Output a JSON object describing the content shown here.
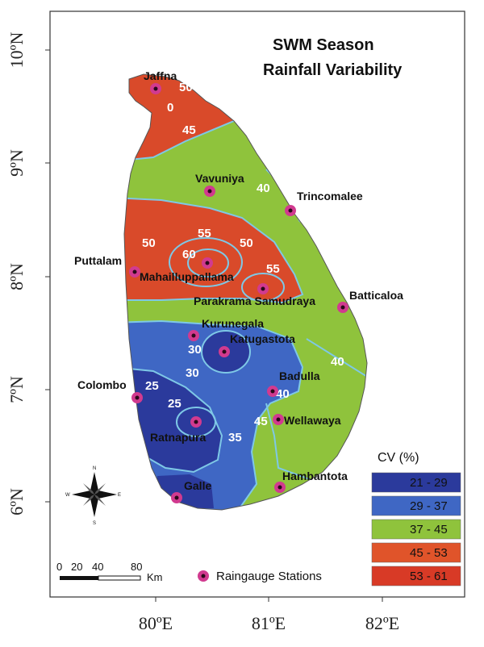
{
  "title": {
    "line1": "SWM Season",
    "line2": "Rainfall Variability"
  },
  "axes": {
    "y_ticks": [
      {
        "id": "10n",
        "label": "10ºN"
      },
      {
        "id": "9n",
        "label": "9ºN"
      },
      {
        "id": "8n",
        "label": "8ºN"
      },
      {
        "id": "7n",
        "label": "7ºN"
      },
      {
        "id": "6n",
        "label": "6ºN"
      }
    ],
    "x_ticks": [
      {
        "id": "80e",
        "label": "80ºE"
      },
      {
        "id": "81e",
        "label": "81ºE"
      },
      {
        "id": "82e",
        "label": "82ºE"
      }
    ]
  },
  "legend": {
    "title": "CV (%)",
    "items": [
      {
        "label": "21 - 29",
        "color": "#2b3a9c"
      },
      {
        "label": "29 - 37",
        "color": "#3f67c4"
      },
      {
        "label": "37 - 45",
        "color": "#8fc33c"
      },
      {
        "label": "45 - 53",
        "color": "#e0542a"
      },
      {
        "label": "53 - 61",
        "color": "#d83a26"
      }
    ],
    "station_label": "Raingauge Stations"
  },
  "scale_bar": {
    "labels": [
      "0",
      "20",
      "40",
      "80"
    ],
    "unit": "Km"
  },
  "compass": {
    "n": "N",
    "s": "S",
    "e": "E",
    "w": "W"
  },
  "stations": [
    "Jaffna",
    "Vavuniya",
    "Trincomalee",
    "Puttalam",
    "Mahailluppallama",
    "Batticaloa",
    "Parakrama Samudraya",
    "Kurunegala",
    "Katugastota",
    "Colombo",
    "Badulla",
    "Wellawaya",
    "Ratnapura",
    "Hambantota",
    "Galle"
  ],
  "contour_labels": [
    "50",
    "0",
    "45",
    "40",
    "55",
    "60",
    "50",
    "55",
    "50",
    "30",
    "30",
    "25",
    "25",
    "35",
    "40",
    "45",
    "40"
  ]
}
